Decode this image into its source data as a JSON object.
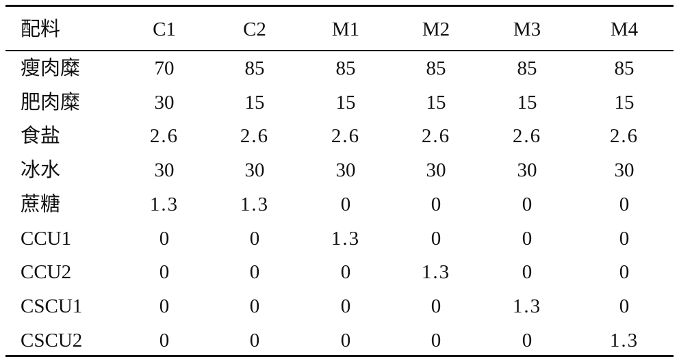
{
  "table": {
    "header": [
      "配料",
      "C1",
      "C2",
      "M1",
      "M2",
      "M3",
      "M4"
    ],
    "rows": [
      [
        "瘦肉糜",
        70,
        85,
        85,
        85,
        85,
        85
      ],
      [
        "肥肉糜",
        30,
        15,
        15,
        15,
        15,
        15
      ],
      [
        "食盐",
        2.6,
        2.6,
        2.6,
        2.6,
        2.6,
        2.6
      ],
      [
        "冰水",
        30,
        30,
        30,
        30,
        30,
        30
      ],
      [
        "蔗糖",
        1.3,
        1.3,
        0,
        0,
        0,
        0
      ],
      [
        "CCU1",
        0,
        0,
        1.3,
        0,
        0,
        0
      ],
      [
        "CCU2",
        0,
        0,
        0,
        1.3,
        0,
        0
      ],
      [
        "CSCU1",
        0,
        0,
        0,
        0,
        1.3,
        0
      ],
      [
        "CSCU2",
        0,
        0,
        0,
        0,
        0,
        1.3
      ]
    ]
  }
}
